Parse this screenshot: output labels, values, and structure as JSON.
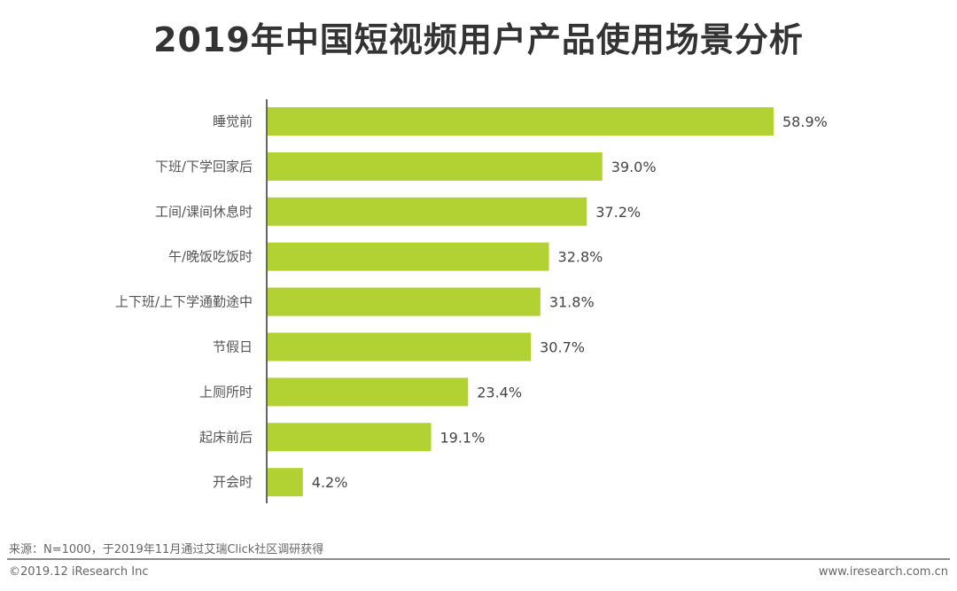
{
  "chart_data": {
    "type": "bar",
    "orientation": "horizontal",
    "title": "2019年中国短视频用户产品使用场景分析",
    "categories": [
      "睡觉前",
      "下班/下学回家后",
      "工间/课间休息时",
      "午/晚饭吃饭时",
      "上下班/上下学通勤途中",
      "节假日",
      "上厕所时",
      "起床前后",
      "开会时"
    ],
    "values": [
      58.9,
      39.0,
      37.2,
      32.8,
      31.8,
      30.7,
      23.4,
      19.1,
      4.2
    ],
    "data_labels": [
      "58.9%",
      "39.0%",
      "37.2%",
      "32.8%",
      "31.8%",
      "30.7%",
      "23.4%",
      "19.1%",
      "4.2%"
    ],
    "unit": "%",
    "xlim": [
      0,
      60
    ],
    "grid": false,
    "bar_color": "#b1d232",
    "axis_color": "#666666"
  },
  "footer": {
    "source": "来源：N=1000，于2019年11月通过艾瑞Click社区调研获得",
    "copyright": "©2019.12 iResearch Inc",
    "website": "www.iresearch.com.cn"
  }
}
